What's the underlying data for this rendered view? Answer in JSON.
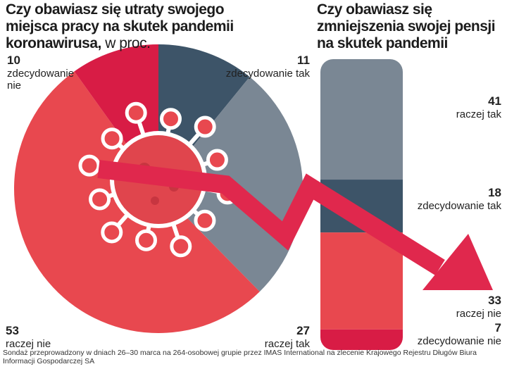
{
  "chart_data": [
    {
      "type": "pie",
      "title": "Czy obawiasz się utraty swojego miejsca pracy na skutek pandemii koronawirusa,",
      "subtitle": "w proc.",
      "categories": [
        "zdecydowanie tak",
        "raczej tak",
        "raczej nie",
        "zdecydowanie nie"
      ],
      "values": [
        11,
        27,
        53,
        10
      ],
      "colors": [
        "#3d5468",
        "#7a8794",
        "#e8484f",
        "#d81c45"
      ]
    },
    {
      "type": "stacked-bar",
      "title": "Czy obawiasz się zmniejszenia swojej pensji na skutek pandemii",
      "categories": [
        "raczej tak",
        "zdecydowanie tak",
        "raczej nie",
        "zdecydowanie nie"
      ],
      "values": [
        41,
        18,
        33,
        7
      ],
      "colors": [
        "#7a8794",
        "#3d5468",
        "#e8484f",
        "#d81c45"
      ]
    }
  ],
  "source": "Sondaż przeprowadzony w dniach 26–30 marca na 264-osobowej grupie przez IMAS International na zlecenie Krajowego Rejestru Długów Biura Informacji Gospodarczej SA"
}
